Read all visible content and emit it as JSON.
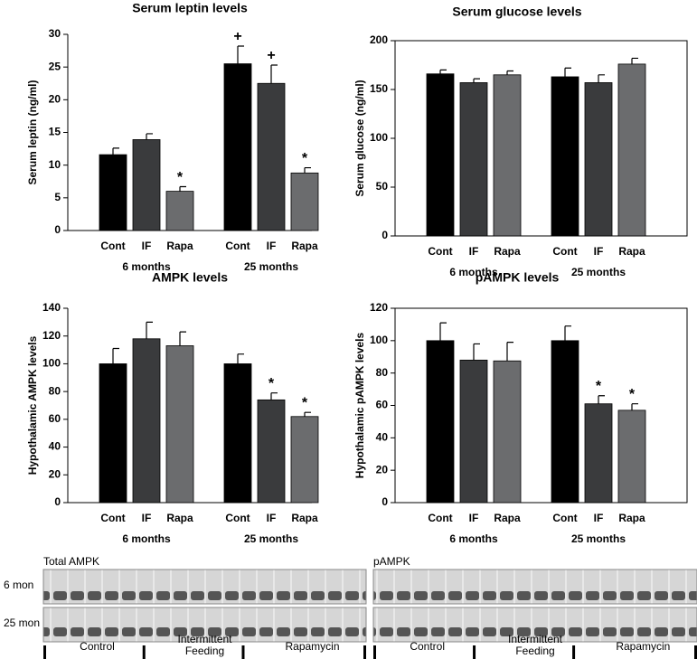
{
  "chart_data": [
    {
      "type": "bar",
      "title": "Serum leptin levels",
      "y_label": "Serum leptin (ng/ml)",
      "categories": [
        "Cont",
        "IF",
        "Rapa",
        "Cont",
        "IF",
        "Rapa"
      ],
      "groups": [
        "6 months",
        "25 months"
      ],
      "values": [
        11.6,
        13.9,
        6.0,
        25.5,
        22.5,
        8.8
      ],
      "errors": [
        1.0,
        0.9,
        0.7,
        2.7,
        2.8,
        0.8
      ],
      "value_annotations": [
        null,
        null,
        "*",
        "+",
        "+",
        "*"
      ],
      "colors": [
        "#000000",
        "#3a3b3d",
        "#6b6c6e",
        "#000000",
        "#3a3b3d",
        "#6b6c6e"
      ],
      "ylim": [
        0,
        30
      ],
      "yticks": [
        0,
        5,
        10,
        15,
        20,
        25,
        30
      ],
      "frame": false
    },
    {
      "type": "bar",
      "title": "Serum glucose levels",
      "y_label": "Serum glucose (ng/ml)",
      "categories": [
        "Cont",
        "IF",
        "Rapa",
        "Cont",
        "IF",
        "Rapa"
      ],
      "groups": [
        "6 months",
        "25 months"
      ],
      "values": [
        166,
        157,
        165,
        163,
        157,
        176
      ],
      "errors": [
        4,
        4,
        4,
        9,
        8,
        6
      ],
      "value_annotations": [
        null,
        null,
        null,
        null,
        null,
        null
      ],
      "colors": [
        "#000000",
        "#3a3b3d",
        "#6b6c6e",
        "#000000",
        "#3a3b3d",
        "#6b6c6e"
      ],
      "ylim": [
        0,
        200
      ],
      "yticks": [
        0,
        50,
        100,
        150,
        200
      ],
      "frame": true
    },
    {
      "type": "bar",
      "title": "AMPK levels",
      "y_label": "Hypothalamic AMPK levels",
      "categories": [
        "Cont",
        "IF",
        "Rapa",
        "Cont",
        "IF",
        "Rapa"
      ],
      "groups": [
        "6 months",
        "25 months"
      ],
      "values": [
        100,
        118,
        113,
        100,
        74,
        62
      ],
      "errors": [
        11,
        12,
        10,
        7,
        5,
        3
      ],
      "value_annotations": [
        null,
        null,
        null,
        null,
        "*",
        "*"
      ],
      "colors": [
        "#000000",
        "#3a3b3d",
        "#6b6c6e",
        "#000000",
        "#3a3b3d",
        "#6b6c6e"
      ],
      "ylim": [
        0,
        140
      ],
      "yticks": [
        0,
        20,
        40,
        60,
        80,
        100,
        120,
        140
      ],
      "frame": false
    },
    {
      "type": "bar",
      "title": "pAMPK levels",
      "y_label": "Hypothalamic pAMPK levels",
      "categories": [
        "Cont",
        "IF",
        "Rapa",
        "Cont",
        "IF",
        "Rapa"
      ],
      "groups": [
        "6 months",
        "25 months"
      ],
      "values": [
        100,
        88,
        87.5,
        100,
        61,
        57
      ],
      "errors": [
        11,
        10,
        11.5,
        9,
        5,
        4
      ],
      "value_annotations": [
        null,
        null,
        null,
        null,
        "*",
        "*"
      ],
      "colors": [
        "#000000",
        "#3a3b3d",
        "#6b6c6e",
        "#000000",
        "#3a3b3d",
        "#6b6c6e"
      ],
      "ylim": [
        0,
        120
      ],
      "yticks": [
        0,
        20,
        40,
        60,
        80,
        100,
        120
      ],
      "frame": true
    }
  ],
  "blots": {
    "panels": [
      "Total AMPK",
      "pAMPK"
    ],
    "rows": [
      "6 mon",
      "25 mon"
    ],
    "groups": [
      [
        "Control"
      ],
      [
        "Intermittent",
        "Feeding"
      ],
      [
        "Rapamycin"
      ]
    ]
  }
}
